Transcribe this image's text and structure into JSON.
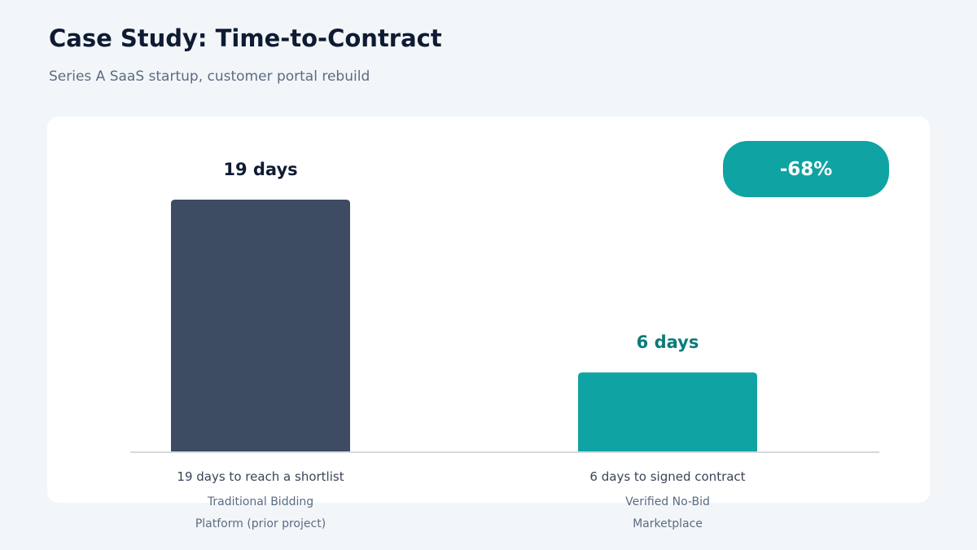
{
  "header": {
    "title": "Case Study: Time-to-Contract",
    "subtitle": "Series A SaaS startup, customer portal rebuild"
  },
  "badge": {
    "text": "-68%",
    "color": "#10a3a3"
  },
  "colors": {
    "baseline_bar": "#3d4b63",
    "marketplace_bar": "#10a3a3",
    "baseline_label": "#0f1b33",
    "marketplace_label": "#0b7a7a",
    "caption": "#3a4459",
    "category": "#5b6b82",
    "axis": "#d5dadf"
  },
  "chart_data": {
    "type": "bar",
    "categories": [
      [
        "Traditional Bidding",
        "Platform (prior project)"
      ],
      [
        "Verified No-Bid",
        "Marketplace"
      ]
    ],
    "values": [
      19,
      6
    ],
    "unit": "days",
    "data_labels": [
      "19 days",
      "6 days"
    ],
    "captions": [
      "19 days to reach a shortlist",
      "6 days to signed contract"
    ],
    "ylim": [
      0,
      19
    ],
    "grid": false
  }
}
